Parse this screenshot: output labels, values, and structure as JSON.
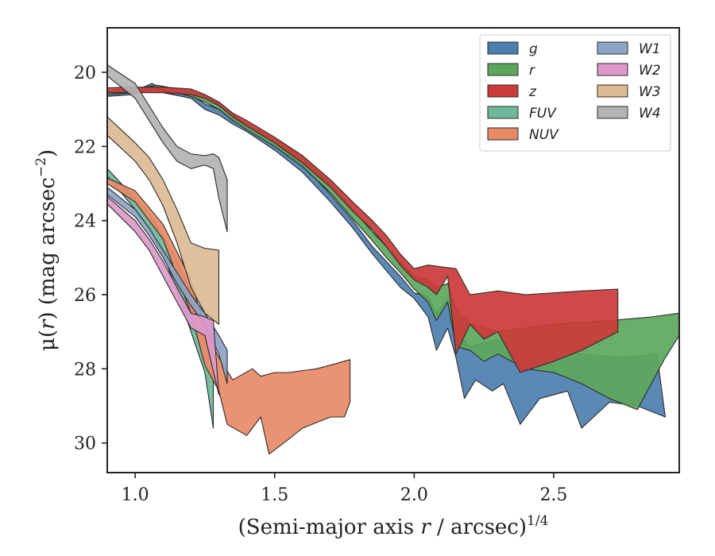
{
  "chart_data": {
    "type": "area",
    "xlabel_main": "(Semi-major axis ",
    "xlabel_var": "r",
    "xlabel_mid": " / arcsec)",
    "xlabel_sup": "1/4",
    "ylabel_main": "μ(",
    "ylabel_var": "r",
    "ylabel_mid": ") (mag arcsec",
    "ylabel_sup": "−2",
    "ylabel_end": ")",
    "xlim": [
      0.9,
      2.95
    ],
    "ylim": [
      30.8,
      18.8
    ],
    "y_inverted": true,
    "xticks": [
      1.0,
      1.5,
      2.0,
      2.5
    ],
    "xtick_labels": [
      "1.0",
      "1.5",
      "2.0",
      "2.5"
    ],
    "yticks": [
      20,
      22,
      24,
      26,
      28,
      30
    ],
    "ytick_labels": [
      "20",
      "22",
      "24",
      "26",
      "28",
      "30"
    ],
    "legend": {
      "position": "top-right",
      "columns": 2
    },
    "series": [
      {
        "name": "g",
        "color": "#4c7fb0",
        "upper": [
          [
            0.9,
            20.55
          ],
          [
            1.0,
            20.5
          ],
          [
            1.06,
            20.3
          ],
          [
            1.1,
            20.45
          ],
          [
            1.2,
            20.6
          ],
          [
            1.25,
            20.85
          ],
          [
            1.3,
            21.0
          ],
          [
            1.35,
            21.25
          ],
          [
            1.4,
            21.45
          ],
          [
            1.5,
            21.9
          ],
          [
            1.6,
            22.5
          ],
          [
            1.7,
            23.3
          ],
          [
            1.78,
            24.0
          ],
          [
            1.85,
            24.7
          ],
          [
            1.9,
            25.1
          ],
          [
            1.95,
            25.5
          ],
          [
            2.0,
            25.95
          ],
          [
            2.05,
            26.05
          ],
          [
            2.08,
            26.5
          ],
          [
            2.12,
            26.1
          ],
          [
            2.15,
            27.0
          ],
          [
            2.2,
            27.4
          ],
          [
            2.25,
            27.3
          ],
          [
            2.3,
            27.2
          ],
          [
            2.4,
            27.4
          ],
          [
            2.5,
            27.5
          ],
          [
            2.6,
            27.6
          ],
          [
            2.75,
            27.7
          ],
          [
            2.87,
            27.6
          ]
        ],
        "lower": [
          [
            0.9,
            20.65
          ],
          [
            1.0,
            20.6
          ],
          [
            1.06,
            20.45
          ],
          [
            1.1,
            20.55
          ],
          [
            1.2,
            20.7
          ],
          [
            1.25,
            21.0
          ],
          [
            1.3,
            21.15
          ],
          [
            1.35,
            21.4
          ],
          [
            1.4,
            21.6
          ],
          [
            1.5,
            22.1
          ],
          [
            1.6,
            22.7
          ],
          [
            1.7,
            23.5
          ],
          [
            1.78,
            24.2
          ],
          [
            1.85,
            24.9
          ],
          [
            1.9,
            25.35
          ],
          [
            1.95,
            25.8
          ],
          [
            2.0,
            26.1
          ],
          [
            2.05,
            26.6
          ],
          [
            2.08,
            27.5
          ],
          [
            2.12,
            26.9
          ],
          [
            2.15,
            27.7
          ],
          [
            2.18,
            28.8
          ],
          [
            2.22,
            28.3
          ],
          [
            2.28,
            28.6
          ],
          [
            2.32,
            28.4
          ],
          [
            2.38,
            29.5
          ],
          [
            2.45,
            28.8
          ],
          [
            2.55,
            28.6
          ],
          [
            2.6,
            29.6
          ],
          [
            2.7,
            28.9
          ],
          [
            2.8,
            29.0
          ],
          [
            2.9,
            29.3
          ]
        ]
      },
      {
        "name": "r",
        "color": "#5ca75c",
        "upper": [
          [
            0.9,
            20.5
          ],
          [
            1.0,
            20.45
          ],
          [
            1.08,
            20.35
          ],
          [
            1.15,
            20.45
          ],
          [
            1.2,
            20.5
          ],
          [
            1.25,
            20.65
          ],
          [
            1.3,
            20.85
          ],
          [
            1.35,
            21.15
          ],
          [
            1.4,
            21.4
          ],
          [
            1.5,
            21.8
          ],
          [
            1.6,
            22.3
          ],
          [
            1.7,
            23.0
          ],
          [
            1.78,
            23.7
          ],
          [
            1.85,
            24.3
          ],
          [
            1.9,
            24.7
          ],
          [
            1.95,
            25.1
          ],
          [
            2.0,
            25.5
          ],
          [
            2.05,
            25.6
          ],
          [
            2.08,
            25.8
          ],
          [
            2.12,
            25.7
          ],
          [
            2.15,
            26.4
          ],
          [
            2.2,
            26.8
          ],
          [
            2.3,
            27.0
          ],
          [
            2.4,
            26.9
          ],
          [
            2.5,
            26.8
          ],
          [
            2.7,
            26.7
          ],
          [
            2.85,
            26.6
          ],
          [
            2.95,
            26.5
          ]
        ],
        "lower": [
          [
            0.9,
            20.6
          ],
          [
            1.0,
            20.55
          ],
          [
            1.08,
            20.45
          ],
          [
            1.15,
            20.55
          ],
          [
            1.2,
            20.65
          ],
          [
            1.25,
            20.8
          ],
          [
            1.3,
            21.0
          ],
          [
            1.35,
            21.3
          ],
          [
            1.4,
            21.55
          ],
          [
            1.5,
            22.0
          ],
          [
            1.6,
            22.55
          ],
          [
            1.7,
            23.25
          ],
          [
            1.78,
            23.95
          ],
          [
            1.85,
            24.55
          ],
          [
            1.9,
            25.0
          ],
          [
            1.95,
            25.4
          ],
          [
            2.0,
            25.85
          ],
          [
            2.05,
            26.2
          ],
          [
            2.08,
            26.7
          ],
          [
            2.12,
            26.2
          ],
          [
            2.15,
            27.4
          ],
          [
            2.2,
            27.5
          ],
          [
            2.25,
            27.8
          ],
          [
            2.3,
            27.6
          ],
          [
            2.4,
            28.0
          ],
          [
            2.5,
            28.1
          ],
          [
            2.6,
            28.4
          ],
          [
            2.7,
            28.8
          ],
          [
            2.8,
            29.1
          ],
          [
            2.9,
            27.7
          ],
          [
            2.95,
            27.1
          ]
        ]
      },
      {
        "name": "z",
        "color": "#cc3a3a",
        "upper": [
          [
            0.9,
            20.42
          ],
          [
            1.0,
            20.4
          ],
          [
            1.1,
            20.4
          ],
          [
            1.2,
            20.45
          ],
          [
            1.25,
            20.6
          ],
          [
            1.3,
            20.8
          ],
          [
            1.35,
            21.1
          ],
          [
            1.4,
            21.3
          ],
          [
            1.5,
            21.75
          ],
          [
            1.6,
            22.25
          ],
          [
            1.7,
            22.9
          ],
          [
            1.78,
            23.5
          ],
          [
            1.85,
            24.0
          ],
          [
            1.9,
            24.4
          ],
          [
            1.95,
            24.9
          ],
          [
            2.0,
            25.3
          ],
          [
            2.05,
            25.2
          ],
          [
            2.1,
            25.25
          ],
          [
            2.15,
            25.3
          ],
          [
            2.2,
            26.0
          ],
          [
            2.3,
            25.9
          ],
          [
            2.4,
            26.0
          ],
          [
            2.5,
            25.95
          ],
          [
            2.6,
            25.9
          ],
          [
            2.73,
            25.85
          ]
        ],
        "lower": [
          [
            0.9,
            20.55
          ],
          [
            1.0,
            20.55
          ],
          [
            1.1,
            20.55
          ],
          [
            1.2,
            20.6
          ],
          [
            1.25,
            20.7
          ],
          [
            1.3,
            20.9
          ],
          [
            1.35,
            21.2
          ],
          [
            1.4,
            21.45
          ],
          [
            1.5,
            21.9
          ],
          [
            1.6,
            22.45
          ],
          [
            1.7,
            23.1
          ],
          [
            1.78,
            23.75
          ],
          [
            1.85,
            24.25
          ],
          [
            1.9,
            24.7
          ],
          [
            1.95,
            25.2
          ],
          [
            2.0,
            25.6
          ],
          [
            2.05,
            25.8
          ],
          [
            2.08,
            26.0
          ],
          [
            2.12,
            25.5
          ],
          [
            2.15,
            27.6
          ],
          [
            2.2,
            26.8
          ],
          [
            2.25,
            27.2
          ],
          [
            2.3,
            27.0
          ],
          [
            2.38,
            28.1
          ],
          [
            2.5,
            27.8
          ],
          [
            2.6,
            27.5
          ],
          [
            2.73,
            27.0
          ]
        ]
      },
      {
        "name": "FUV",
        "color": "#6fb89a",
        "upper": [
          [
            0.9,
            22.6
          ],
          [
            1.0,
            23.4
          ],
          [
            1.05,
            23.8
          ],
          [
            1.1,
            24.4
          ],
          [
            1.15,
            25.1
          ],
          [
            1.2,
            25.9
          ],
          [
            1.25,
            26.6
          ],
          [
            1.28,
            27.2
          ]
        ],
        "lower": [
          [
            0.9,
            22.8
          ],
          [
            1.0,
            23.7
          ],
          [
            1.05,
            24.2
          ],
          [
            1.1,
            24.9
          ],
          [
            1.15,
            25.9
          ],
          [
            1.2,
            27.0
          ],
          [
            1.25,
            28.1
          ],
          [
            1.28,
            29.6
          ]
        ]
      },
      {
        "name": "NUV",
        "color": "#e88a66",
        "upper": [
          [
            0.9,
            22.85
          ],
          [
            1.0,
            23.2
          ],
          [
            1.1,
            24.1
          ],
          [
            1.2,
            25.6
          ],
          [
            1.25,
            26.9
          ],
          [
            1.3,
            27.7
          ],
          [
            1.35,
            28.3
          ],
          [
            1.42,
            28.0
          ],
          [
            1.45,
            28.2
          ],
          [
            1.5,
            28.1
          ],
          [
            1.55,
            28.1
          ],
          [
            1.65,
            28.0
          ],
          [
            1.7,
            27.9
          ],
          [
            1.77,
            27.75
          ]
        ],
        "lower": [
          [
            0.9,
            23.0
          ],
          [
            1.0,
            23.5
          ],
          [
            1.1,
            24.5
          ],
          [
            1.2,
            26.5
          ],
          [
            1.25,
            27.9
          ],
          [
            1.3,
            28.6
          ],
          [
            1.33,
            29.5
          ],
          [
            1.4,
            29.8
          ],
          [
            1.45,
            29.3
          ],
          [
            1.48,
            30.3
          ],
          [
            1.55,
            29.9
          ],
          [
            1.6,
            29.6
          ],
          [
            1.7,
            29.3
          ],
          [
            1.75,
            29.3
          ],
          [
            1.77,
            28.9
          ]
        ]
      },
      {
        "name": "W1",
        "color": "#8fa3c6",
        "upper": [
          [
            0.9,
            23.1
          ],
          [
            1.0,
            23.7
          ],
          [
            1.05,
            24.2
          ],
          [
            1.1,
            24.8
          ],
          [
            1.15,
            25.4
          ],
          [
            1.2,
            26.0
          ],
          [
            1.25,
            26.5
          ],
          [
            1.3,
            27.1
          ],
          [
            1.33,
            27.5
          ]
        ],
        "lower": [
          [
            0.9,
            23.3
          ],
          [
            1.0,
            23.9
          ],
          [
            1.05,
            24.4
          ],
          [
            1.1,
            25.0
          ],
          [
            1.15,
            25.7
          ],
          [
            1.2,
            26.3
          ],
          [
            1.25,
            26.8
          ],
          [
            1.3,
            27.6
          ],
          [
            1.33,
            28.4
          ]
        ]
      },
      {
        "name": "W2",
        "color": "#dd99cb",
        "upper": [
          [
            0.9,
            23.35
          ],
          [
            1.0,
            24.0
          ],
          [
            1.05,
            24.5
          ],
          [
            1.1,
            25.1
          ],
          [
            1.15,
            25.8
          ],
          [
            1.2,
            26.5
          ],
          [
            1.25,
            26.6
          ],
          [
            1.28,
            26.7
          ]
        ],
        "lower": [
          [
            0.9,
            23.55
          ],
          [
            1.0,
            24.3
          ],
          [
            1.05,
            24.8
          ],
          [
            1.1,
            25.5
          ],
          [
            1.15,
            26.2
          ],
          [
            1.2,
            26.9
          ],
          [
            1.25,
            27.1
          ],
          [
            1.3,
            28.7
          ]
        ]
      },
      {
        "name": "W3",
        "color": "#dcbb94",
        "upper": [
          [
            0.9,
            21.2
          ],
          [
            1.0,
            21.9
          ],
          [
            1.05,
            22.3
          ],
          [
            1.1,
            22.9
          ],
          [
            1.15,
            23.7
          ],
          [
            1.2,
            24.6
          ],
          [
            1.25,
            24.75
          ],
          [
            1.3,
            24.8
          ]
        ],
        "lower": [
          [
            0.9,
            21.7
          ],
          [
            1.0,
            22.4
          ],
          [
            1.05,
            22.9
          ],
          [
            1.1,
            23.6
          ],
          [
            1.15,
            24.6
          ],
          [
            1.2,
            25.8
          ],
          [
            1.25,
            26.5
          ],
          [
            1.3,
            26.8
          ]
        ]
      },
      {
        "name": "W4",
        "color": "#b3b3b3",
        "upper": [
          [
            0.9,
            19.8
          ],
          [
            1.0,
            20.3
          ],
          [
            1.05,
            20.9
          ],
          [
            1.1,
            21.5
          ],
          [
            1.15,
            22.0
          ],
          [
            1.2,
            22.2
          ],
          [
            1.25,
            22.25
          ],
          [
            1.28,
            22.2
          ],
          [
            1.3,
            22.3
          ],
          [
            1.33,
            22.9
          ]
        ],
        "lower": [
          [
            0.9,
            20.1
          ],
          [
            1.0,
            20.7
          ],
          [
            1.05,
            21.3
          ],
          [
            1.1,
            21.9
          ],
          [
            1.15,
            22.4
          ],
          [
            1.2,
            22.6
          ],
          [
            1.25,
            22.5
          ],
          [
            1.28,
            22.6
          ],
          [
            1.3,
            23.4
          ],
          [
            1.33,
            24.3
          ]
        ]
      }
    ]
  }
}
